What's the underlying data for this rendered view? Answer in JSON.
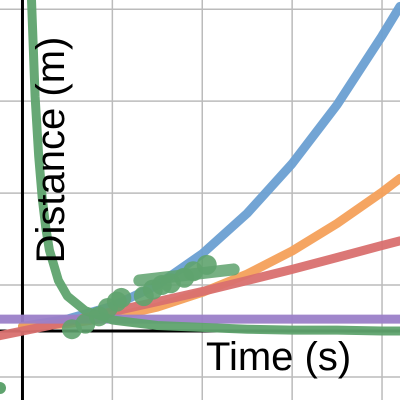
{
  "chart_data": {
    "type": "line",
    "title": "",
    "xlabel": "Time (s)",
    "ylabel": "Distance (m)",
    "xlim": [
      -0.25,
      4.2
    ],
    "ylim": [
      -0.75,
      3.6
    ],
    "grid": true,
    "grid_x_values": [
      1,
      2,
      3,
      4
    ],
    "grid_y_values": [
      -0.5,
      0.5,
      1.5,
      2.5,
      3.5
    ],
    "colors": {
      "blue": "#6a9fd2",
      "orange": "#f4a05a",
      "red": "#d9706f",
      "purple": "#9b7fc8",
      "green": "#5fa36e",
      "axis": "#000000",
      "grid": "#bbbbbb"
    },
    "series": [
      {
        "color_key": "blue",
        "x": [
          0,
          0.5,
          1,
          1.5,
          2,
          2.5,
          3,
          3.5,
          4,
          4.2
        ],
        "y": [
          0.05,
          0.13,
          0.27,
          0.5,
          0.84,
          1.28,
          1.82,
          2.46,
          3.21,
          3.53
        ]
      },
      {
        "color_key": "orange",
        "x": [
          0,
          0.5,
          1,
          1.5,
          2,
          2.5,
          3,
          3.5,
          4,
          4.2
        ],
        "y": [
          0.05,
          0.08,
          0.15,
          0.26,
          0.42,
          0.62,
          0.87,
          1.17,
          1.51,
          1.66
        ]
      },
      {
        "color_key": "red",
        "x": [
          -0.25,
          0.5,
          1,
          1.5,
          2,
          2.5,
          3,
          3.5,
          4,
          4.2
        ],
        "y": [
          -0.05,
          0.1,
          0.21,
          0.32,
          0.43,
          0.55,
          0.67,
          0.8,
          0.93,
          0.98
        ]
      },
      {
        "color_key": "purple",
        "x": [
          -0.25,
          4.2
        ],
        "y": [
          0.13,
          0.13
        ]
      },
      {
        "color_key": "green",
        "x": [
          0.1,
          0.14,
          0.18,
          0.22,
          0.26,
          0.3,
          0.4,
          0.5,
          0.7,
          1,
          1.5,
          2,
          2.5,
          3,
          3.5,
          4,
          4.2
        ],
        "y": [
          3.6,
          2.55,
          1.9,
          1.45,
          1.12,
          0.88,
          0.55,
          0.38,
          0.22,
          0.12,
          0.06,
          0.04,
          0.02,
          0.01,
          0.01,
          0.0,
          0.0
        ]
      }
    ],
    "scatter": {
      "color_key": "green",
      "x": [
        0.55,
        0.7,
        0.85,
        0.95,
        1.05,
        1.1,
        1.35,
        1.45,
        1.55,
        1.65,
        1.8,
        1.9,
        2.05
      ],
      "y": [
        0.02,
        0.08,
        0.16,
        0.25,
        0.32,
        0.36,
        0.38,
        0.45,
        0.5,
        0.52,
        0.58,
        0.65,
        0.72
      ]
    },
    "fit_segments": [
      {
        "color_key": "green",
        "x": [
          1.3,
          2.35
        ],
        "y": [
          0.55,
          0.67
        ]
      }
    ],
    "offscreen_marker": {
      "color_key": "green",
      "x": -0.25,
      "y": -0.62
    }
  }
}
